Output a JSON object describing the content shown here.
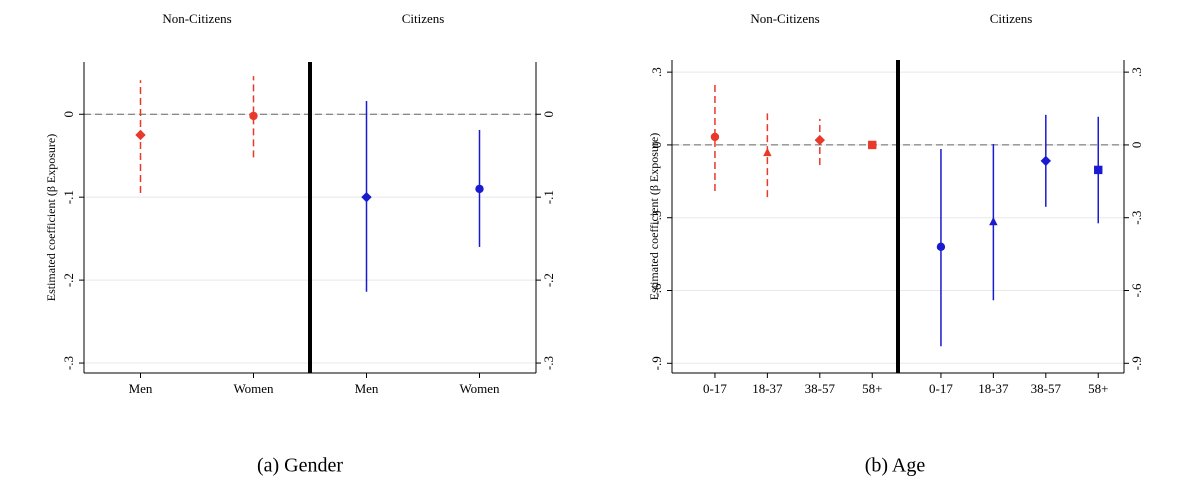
{
  "chart_data": [
    {
      "type": "errorbar",
      "caption": "(a)  Gender",
      "ylabel": "Estimated coefficient (β Exposure)",
      "ylim": [
        -0.312,
        0.063
      ],
      "yticks": [
        {
          "value": -0.3,
          "label": "-.3"
        },
        {
          "value": -0.2,
          "label": "-.2"
        },
        {
          "value": -0.1,
          "label": "-.1"
        },
        0
      ],
      "refline": 0,
      "grid": true,
      "categories": [
        "Men",
        "Women"
      ],
      "markers": [
        "diamond",
        "circle"
      ],
      "series": [
        {
          "name": "Non-Citizens",
          "color": "#e8392b",
          "dashed": true,
          "values": [
            -0.025,
            -0.002
          ],
          "lower": [
            -0.095,
            -0.052
          ],
          "upper": [
            0.041,
            0.046
          ]
        },
        {
          "name": "Citizens",
          "color": "#1a1ad0",
          "dashed": false,
          "values": [
            -0.1,
            -0.09
          ],
          "lower": [
            -0.214,
            -0.16
          ],
          "upper": [
            0.016,
            -0.019
          ]
        }
      ]
    },
    {
      "type": "errorbar",
      "caption": "(b)  Age",
      "ylabel": "Estimated coefficient (β Exposure)",
      "ylim": [
        -0.94,
        0.35
      ],
      "yticks": [
        {
          "value": -0.9,
          "label": "-.9"
        },
        {
          "value": -0.6,
          "label": "-.6"
        },
        {
          "value": -0.3,
          "label": "-.3"
        },
        0,
        {
          "value": 0.3,
          "label": ".3"
        }
      ],
      "refline": 0,
      "grid": true,
      "categories": [
        "0-17",
        "18-37",
        "38-57",
        "58+"
      ],
      "markers": [
        "circle",
        "triangle",
        "diamond",
        "square"
      ],
      "series": [
        {
          "name": "Non-Citizens",
          "color": "#e8392b",
          "dashed": true,
          "values": [
            0.033,
            -0.033,
            0.02,
            0
          ],
          "lower": [
            -0.19,
            -0.215,
            -0.083,
            -0.012
          ],
          "upper": [
            0.25,
            0.13,
            0.107,
            0.012
          ]
        },
        {
          "name": "Citizens",
          "color": "#1a1ad0",
          "dashed": false,
          "values": [
            -0.42,
            -0.318,
            -0.066,
            -0.103
          ],
          "lower": [
            -0.83,
            -0.64,
            -0.255,
            -0.323
          ],
          "upper": [
            -0.017,
            0.004,
            0.124,
            0.116
          ]
        }
      ]
    }
  ]
}
